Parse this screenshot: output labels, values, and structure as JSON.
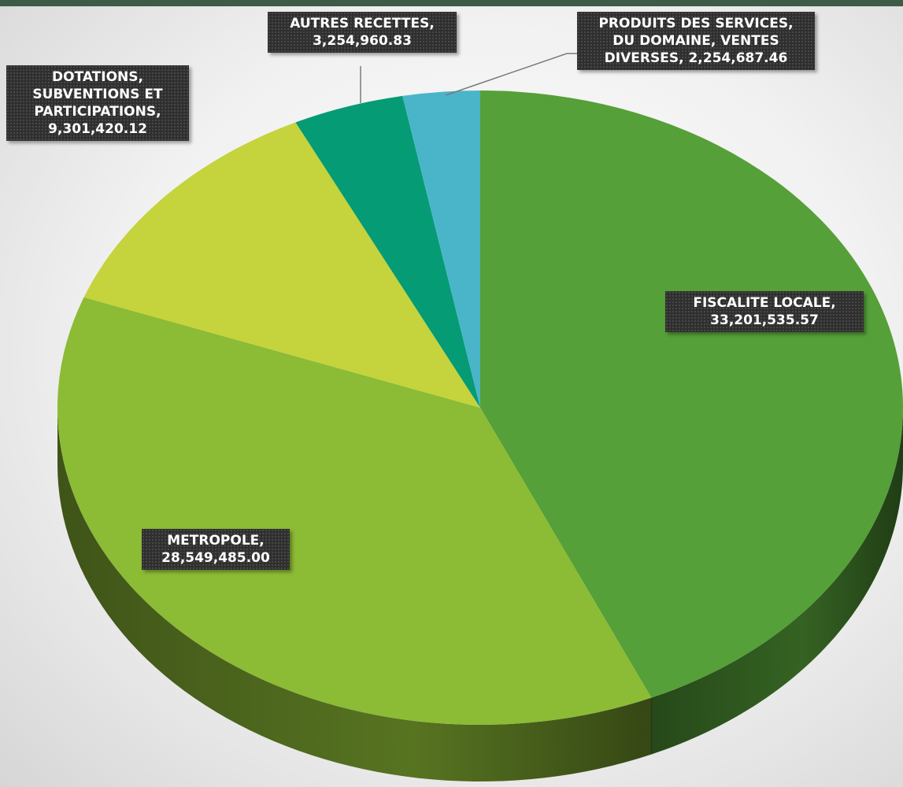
{
  "chart_data": {
    "type": "pie",
    "categories": [
      "FISCALITE LOCALE",
      "METROPOLE",
      "DOTATIONS, SUBVENTIONS ET PARTICIPATIONS",
      "AUTRES RECETTES",
      "PRODUITS DES SERVICES, DU DOMAINE, VENTES DIVERSES"
    ],
    "values": [
      33201535.57,
      28549485.0,
      9301420.12,
      3254960.83,
      2254687.46
    ],
    "value_labels": [
      "33,201,535.57",
      "28,549,485.00",
      "9,301,420.12",
      "3,254,960.83",
      "2,254,687.46"
    ],
    "colors": [
      "#55a038",
      "#8cbb35",
      "#c5d33c",
      "#059b74",
      "#4ab5c8"
    ]
  }
}
